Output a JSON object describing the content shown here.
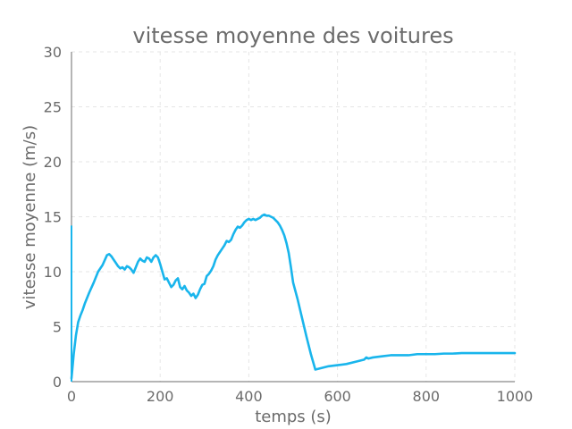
{
  "chart_data": {
    "type": "line",
    "title": "vitesse moyenne des voitures",
    "xlabel": "temps (s)",
    "ylabel": "vitesse moyenne (m/s)",
    "xlim": [
      0,
      1000
    ],
    "ylim": [
      0,
      30
    ],
    "x_ticks": [
      "0",
      "200",
      "400",
      "600",
      "800",
      "1000"
    ],
    "y_ticks": [
      "0",
      "5",
      "10",
      "15",
      "20",
      "25",
      "30"
    ],
    "grid": true,
    "series": [
      {
        "color": "#19b5ec",
        "x": [
          0,
          5,
          10,
          15,
          20,
          25,
          30,
          40,
          50,
          60,
          70,
          80,
          85,
          90,
          95,
          100,
          105,
          110,
          115,
          120,
          125,
          130,
          135,
          140,
          145,
          150,
          155,
          160,
          165,
          170,
          175,
          180,
          185,
          190,
          195,
          200,
          205,
          210,
          215,
          220,
          225,
          230,
          235,
          240,
          245,
          250,
          255,
          260,
          265,
          270,
          275,
          280,
          285,
          290,
          295,
          300,
          305,
          310,
          315,
          320,
          325,
          330,
          335,
          340,
          345,
          350,
          355,
          360,
          365,
          370,
          375,
          380,
          385,
          390,
          395,
          400,
          405,
          410,
          415,
          420,
          425,
          430,
          435,
          440,
          445,
          450,
          455,
          460,
          465,
          470,
          475,
          480,
          485,
          490,
          495,
          500,
          510,
          520,
          530,
          540,
          550,
          560,
          570,
          580,
          600,
          620,
          640,
          660,
          665,
          670,
          680,
          700,
          720,
          740,
          760,
          770,
          780,
          790,
          800,
          820,
          840,
          860,
          880,
          900,
          920,
          940,
          960,
          980,
          1000
        ],
        "y": [
          0.3,
          2.5,
          4.2,
          5.4,
          6.0,
          6.5,
          7.1,
          8.1,
          9.0,
          10.0,
          10.6,
          11.5,
          11.6,
          11.4,
          11.1,
          10.8,
          10.5,
          10.3,
          10.4,
          10.2,
          10.5,
          10.4,
          10.2,
          9.9,
          10.4,
          10.9,
          11.2,
          11.0,
          10.9,
          11.3,
          11.2,
          10.9,
          11.3,
          11.5,
          11.3,
          10.7,
          10.0,
          9.3,
          9.4,
          9.0,
          8.6,
          8.8,
          9.2,
          9.4,
          8.6,
          8.4,
          8.7,
          8.3,
          8.1,
          7.8,
          8.0,
          7.6,
          7.9,
          8.4,
          8.8,
          8.9,
          9.6,
          9.8,
          10.1,
          10.5,
          11.1,
          11.5,
          11.8,
          12.1,
          12.4,
          12.8,
          12.7,
          12.9,
          13.4,
          13.8,
          14.1,
          14.0,
          14.2,
          14.5,
          14.7,
          14.8,
          14.7,
          14.8,
          14.7,
          14.8,
          14.9,
          15.1,
          15.2,
          15.1,
          15.1,
          15.0,
          14.9,
          14.7,
          14.5,
          14.2,
          13.8,
          13.3,
          12.6,
          11.7,
          10.4,
          9.0,
          7.5,
          5.8,
          4.1,
          2.5,
          1.1,
          1.2,
          1.3,
          1.4,
          1.5,
          1.6,
          1.8,
          2.0,
          2.2,
          2.1,
          2.2,
          2.3,
          2.4,
          2.4,
          2.4,
          2.45,
          2.5,
          2.5,
          2.5,
          2.5,
          2.55,
          2.55,
          2.6,
          2.6,
          2.6,
          2.6,
          2.6,
          2.6,
          2.6
        ]
      }
    ],
    "initial_spike": {
      "x": 0,
      "y": 14.2,
      "color": "#19b5ec"
    }
  }
}
